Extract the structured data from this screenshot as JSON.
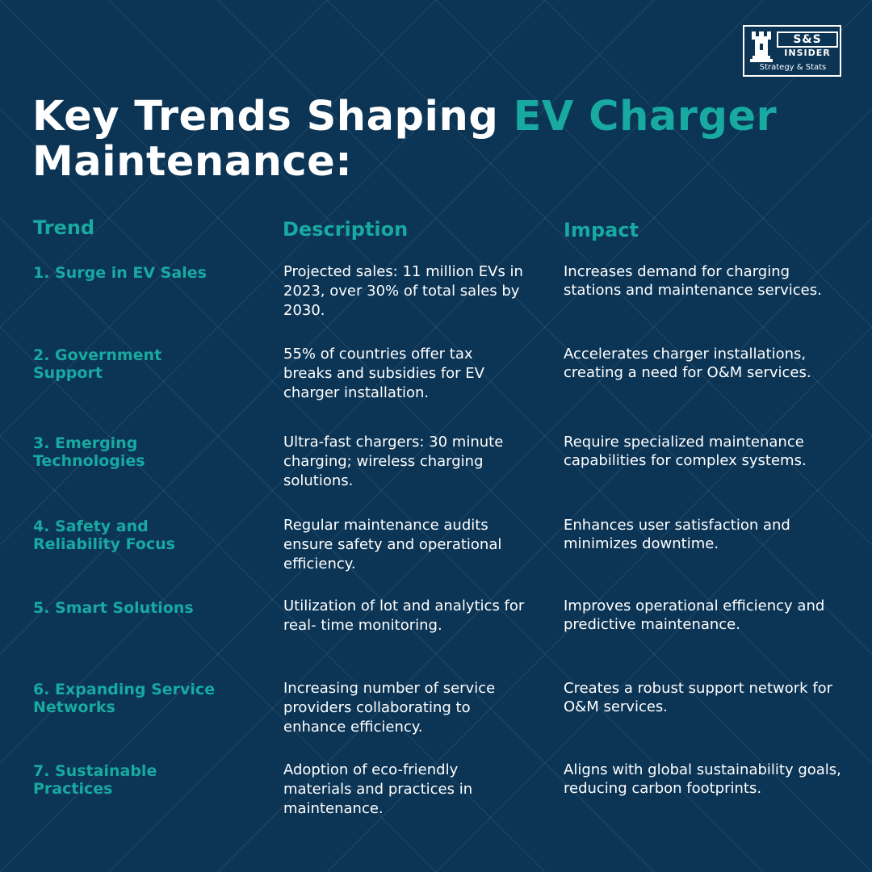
{
  "brand": {
    "logo_main": "S&S",
    "logo_sub": "INSIDER",
    "logo_tag": "Strategy & Stats"
  },
  "title": {
    "prefix": "Key Trends Shaping ",
    "accent": "EV Charger",
    "suffix": "Maintenance:"
  },
  "colors": {
    "background": "#0b3455",
    "accent": "#18a9a1",
    "text": "#ffffff"
  },
  "columns": {
    "trend": "Trend",
    "description": "Description",
    "impact": "Impact"
  },
  "rows": [
    {
      "trend": "1. Surge in EV Sales",
      "description": "Projected sales: 11 million EVs in 2023, over 30% of total sales by 2030.",
      "impact": "Increases demand for charging stations and maintenance services."
    },
    {
      "trend": "2. Government Support",
      "description": "55% of countries offer tax breaks and subsidies for EV charger installation.",
      "impact": "Accelerates charger installations, creating a need for O&M services."
    },
    {
      "trend": "3. Emerging Technologies",
      "description": "Ultra-fast chargers: 30 minute charging; wireless charging solutions.",
      "impact": "Require specialized maintenance capabilities for complex systems."
    },
    {
      "trend": "4. Safety and Reliability Focus",
      "description": "Regular maintenance audits ensure safety and operational efficiency.",
      "impact": "Enhances user satisfaction and minimizes downtime."
    },
    {
      "trend": "5. Smart Solutions",
      "description": "Utilization of lot and analytics for real- time monitoring.",
      "impact": "Improves operational efficiency and predictive maintenance."
    },
    {
      "trend": "6. Expanding Service Networks",
      "description": "Increasing number of service providers collaborating to enhance efficiency.",
      "impact": "Creates a robust support network for O&M services."
    },
    {
      "trend": "7. Sustainable Practices",
      "description": "Adoption of eco-friendly materials and practices in maintenance.",
      "impact": "Aligns with global sustainability goals, reducing carbon footprints."
    }
  ]
}
